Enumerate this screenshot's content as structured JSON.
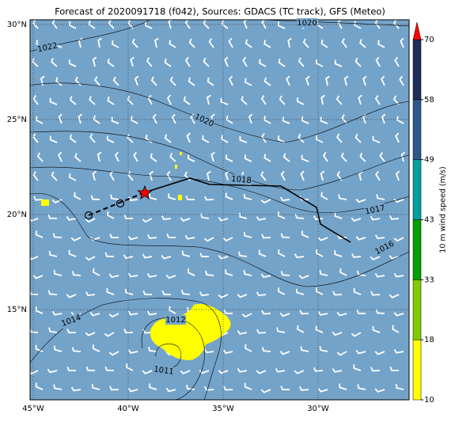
{
  "title": "Forecast of 2020091718 (f042), Sources: GDACS (TC track), GFS (Meteo)",
  "lon_labels": [
    "45°W",
    "40°W",
    "35°W",
    "30°W"
  ],
  "lat_labels": [
    "30°N",
    "25°N",
    "20°N",
    "15°N"
  ],
  "contour_labels": [
    "1022",
    "1020",
    "1020",
    "1018",
    "1017",
    "1016",
    "1014",
    "1012",
    "1011"
  ],
  "colorbar": {
    "label": "10 m wind speed (m/s)",
    "levels": [
      10,
      18,
      33,
      43,
      49,
      58,
      70
    ],
    "colors": [
      "#ffff00",
      "#80cc00",
      "#00a000",
      "#00a0a0",
      "#2a5a8a",
      "#1f2d5a"
    ],
    "extend_color": "#ff0000"
  }
}
